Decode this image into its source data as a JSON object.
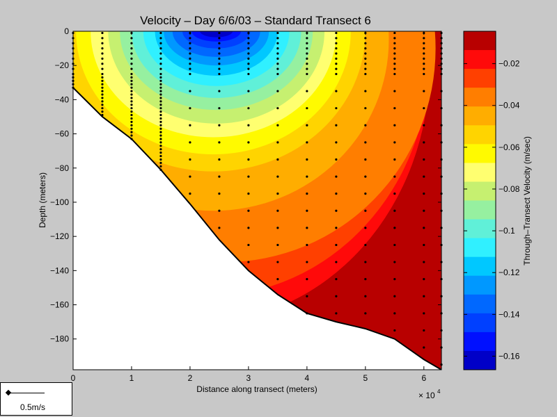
{
  "chart_data": {
    "type": "heatmap",
    "title": "Velocity – Day 6/6/03 – Standard Transect 6",
    "xlabel": "Distance along transect (meters)",
    "ylabel": "Depth (meters)",
    "x_multiplier": "× 10",
    "x_multiplier_exp": "4",
    "xlim": [
      0,
      6.3
    ],
    "ylim": [
      -198,
      0
    ],
    "x_ticks": [
      "0",
      "1",
      "2",
      "3",
      "4",
      "5",
      "6"
    ],
    "y_ticks": [
      "0",
      "−20",
      "−40",
      "−60",
      "−80",
      "−100",
      "−120",
      "−140",
      "−160",
      "−180"
    ],
    "colorbar": {
      "label": "Through–Transect Velocity (m/sec)",
      "ticks": [
        "−0.02",
        "−0.04",
        "−0.06",
        "−0.08",
        "−0.1",
        "−0.12",
        "−0.14",
        "−0.16"
      ],
      "colors": [
        "#b80000",
        "#ff0a0a",
        "#ff4000",
        "#ff7e00",
        "#ffad00",
        "#ffd400",
        "#fffa00",
        "#ffff70",
        "#c6f070",
        "#96f0a0",
        "#60f0d8",
        "#30f0ff",
        "#00c8ff",
        "#0098ff",
        "#0068ff",
        "#0040ff",
        "#0010ff",
        "#0000c8"
      ]
    },
    "bathymetry": {
      "x": [
        0,
        0.5,
        1.0,
        1.5,
        2.0,
        2.5,
        3.0,
        3.5,
        4.0,
        4.5,
        5.0,
        5.5,
        6.0,
        6.3
      ],
      "depth": [
        -33,
        -50,
        -63,
        -81,
        -101,
        -122,
        -140,
        -154,
        -165,
        -170,
        -174,
        -180,
        -192,
        -198
      ]
    },
    "stations_x": [
      0,
      0.5,
      1.0,
      1.5,
      2.0,
      2.5,
      3.0,
      3.5,
      4.0,
      4.5,
      5.0,
      5.5,
      6.0,
      6.3
    ],
    "reference_vector": {
      "label": "0.5m/s"
    }
  }
}
